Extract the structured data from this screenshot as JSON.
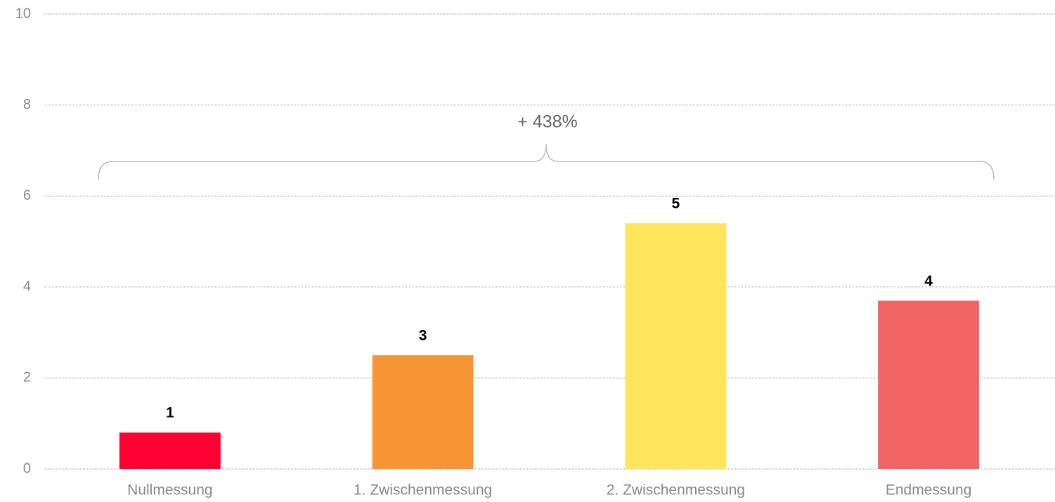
{
  "chart_data": {
    "type": "bar",
    "categories": [
      "Nullmessung",
      "1. Zwischenmessung",
      "2. Zwischenmessung",
      "Endmessung"
    ],
    "values": [
      0.8,
      2.5,
      5.4,
      3.7
    ],
    "value_labels": [
      "1",
      "3",
      "5",
      "4"
    ],
    "colors": [
      "#ff0033",
      "#f79433",
      "#ffe55c",
      "#f06464"
    ],
    "ylim": [
      0,
      10
    ],
    "yticks": [
      0,
      2,
      4,
      6,
      8,
      10
    ],
    "grid": true,
    "annotation": "+ 438%"
  }
}
